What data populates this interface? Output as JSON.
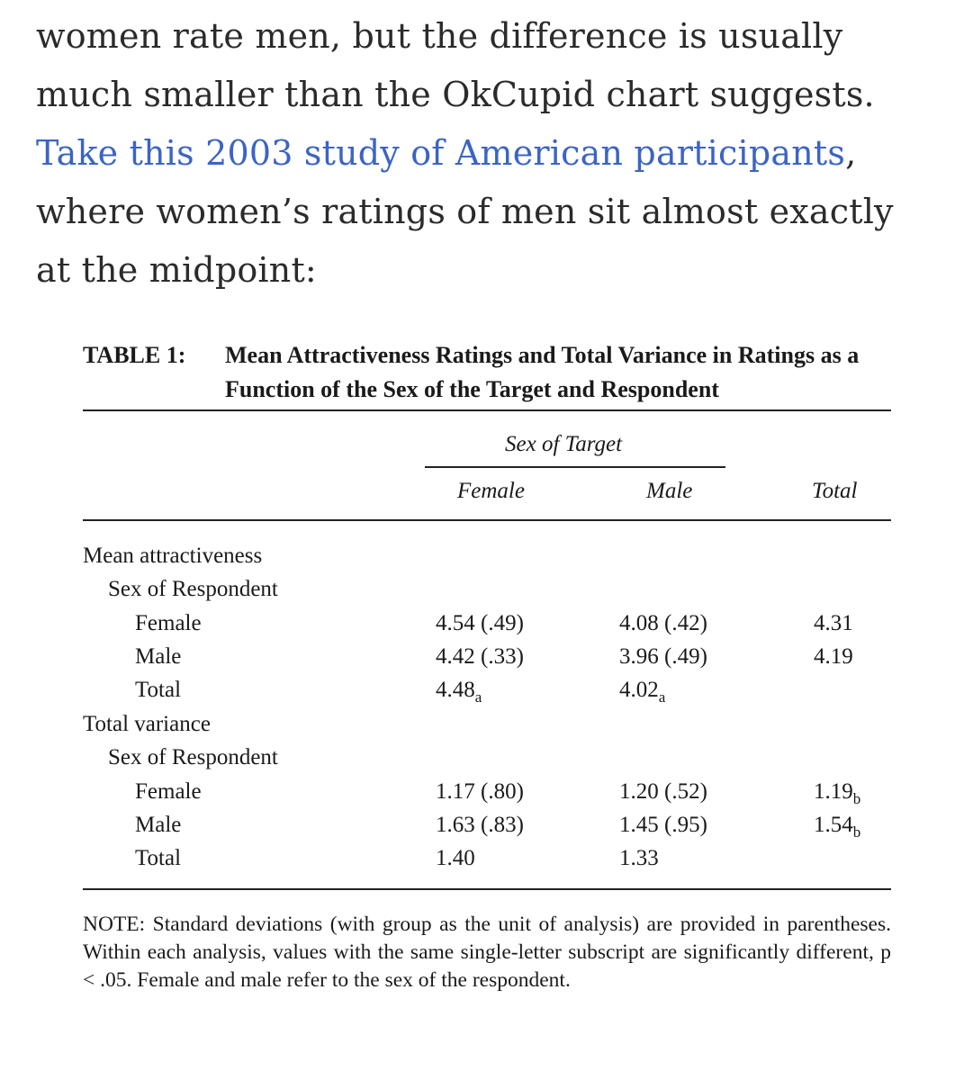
{
  "article": {
    "text_before": "women rate men, but the difference is usually much smaller than the OkCupid chart suggests. ",
    "link_text": "Take this 2003 study of American participants",
    "text_after": ", where women’s ratings of men sit almost exactly at the midpoint:"
  },
  "table": {
    "label": "TABLE 1:",
    "title": "Mean Attractiveness Ratings and Total Variance in Ratings as a Function of the Sex of the Target and Respondent",
    "spanner": "Sex of Target",
    "columns": {
      "female": "Female",
      "male": "Male",
      "total": "Total"
    },
    "sections": {
      "mean": {
        "label": "Mean attractiveness",
        "sub": "Sex of Respondent",
        "rows": [
          {
            "label": "Female",
            "female": "4.54 (.49)",
            "male": "4.08 (.42)",
            "total": "4.31"
          },
          {
            "label": "Male",
            "female": "4.42 (.33)",
            "male": "3.96 (.49)",
            "total": "4.19"
          },
          {
            "label": "Total",
            "female": "4.48",
            "female_sub": "a",
            "male": "4.02",
            "male_sub": "a",
            "total": ""
          }
        ]
      },
      "variance": {
        "label": "Total variance",
        "sub": "Sex of Respondent",
        "rows": [
          {
            "label": "Female",
            "female": "1.17 (.80)",
            "male": "1.20 (.52)",
            "total": "1.19",
            "total_sub": "b"
          },
          {
            "label": "Male",
            "female": "1.63 (.83)",
            "male": "1.45 (.95)",
            "total": "1.54",
            "total_sub": "b"
          },
          {
            "label": "Total",
            "female": "1.40",
            "male": "1.33",
            "total": ""
          }
        ]
      }
    },
    "note": "NOTE: Standard deviations (with group as the unit of analysis) are provided in parentheses. Within each analysis, values with the same single-letter subscript are significantly different, p < .05. Female and male refer to the sex of the respondent."
  }
}
